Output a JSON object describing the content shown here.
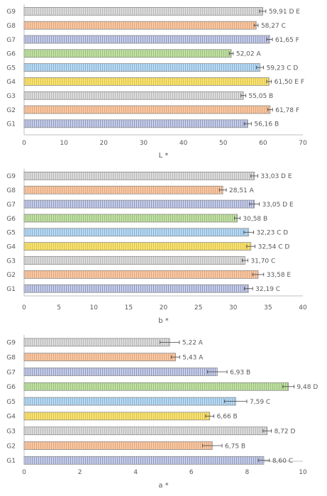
{
  "chart_data": [
    {
      "type": "bar",
      "orientation": "horizontal",
      "xlabel": "L *",
      "xlim": [
        0,
        70
      ],
      "xticks": [
        0,
        10,
        20,
        30,
        40,
        50,
        60,
        70
      ],
      "grid": false,
      "categories": [
        "G1",
        "G2",
        "G3",
        "G4",
        "G5",
        "G6",
        "G7",
        "G8",
        "G9"
      ],
      "values": [
        56.16,
        61.78,
        55.05,
        61.5,
        59.23,
        52.02,
        61.65,
        58.27,
        59.91
      ],
      "errors": [
        0.9,
        0.6,
        0.6,
        0.6,
        0.9,
        0.5,
        0.7,
        0.5,
        0.8
      ],
      "data_labels": [
        "56,16 B",
        "61,78 F",
        "55,05 B",
        "61,50 E F",
        "59,23 C D",
        "52,02 A",
        "61,65 F",
        "58,27 C",
        "59,91 D E"
      ]
    },
    {
      "type": "bar",
      "orientation": "horizontal",
      "xlabel": "b *",
      "xlim": [
        0,
        40
      ],
      "xticks": [
        0,
        5,
        10,
        15,
        20,
        25,
        30,
        35,
        40
      ],
      "grid": false,
      "categories": [
        "G1",
        "G2",
        "G3",
        "G4",
        "G5",
        "G6",
        "G7",
        "G8",
        "G9"
      ],
      "values": [
        32.19,
        33.58,
        31.7,
        32.54,
        32.23,
        30.58,
        33.05,
        28.51,
        33.03
      ],
      "errors": [
        0.6,
        0.8,
        0.4,
        0.6,
        0.7,
        0.4,
        0.7,
        0.5,
        0.5
      ],
      "data_labels": [
        "32,19 C",
        "33,58 E",
        "31,70 C",
        "32,54 C D",
        "32,23 C D",
        "30,58 B",
        "33,05 D E",
        "28,51 A",
        "33,03 D E"
      ]
    },
    {
      "type": "bar",
      "orientation": "horizontal",
      "xlabel": "a *",
      "xlim": [
        0,
        10
      ],
      "xticks": [
        0,
        2,
        4,
        6,
        8,
        10
      ],
      "grid": false,
      "categories": [
        "G1",
        "G2",
        "G3",
        "G4",
        "G5",
        "G6",
        "G7",
        "G8",
        "G9"
      ],
      "values": [
        8.6,
        6.75,
        8.72,
        6.66,
        7.59,
        9.48,
        6.93,
        5.43,
        5.22
      ],
      "errors": [
        0.2,
        0.35,
        0.15,
        0.15,
        0.4,
        0.2,
        0.35,
        0.15,
        0.35
      ],
      "data_labels": [
        "8,60 C",
        "6,75 B",
        "8,72 D",
        "6,66 B",
        "7,59 C",
        "9,48 D",
        "6,93 B",
        "5,43 A",
        "5,22 A"
      ]
    }
  ],
  "series_colors": {
    "G1": {
      "fill": "#c9cfe6",
      "stripe": "#5b6aa8"
    },
    "G2": {
      "fill": "#f6c9a8",
      "stripe": "#d4844c"
    },
    "G3": {
      "fill": "#dcdcdc",
      "stripe": "#9a9a9a"
    },
    "G4": {
      "fill": "#f7e27a",
      "stripe": "#c9a912"
    },
    "G5": {
      "fill": "#bcdaf0",
      "stripe": "#5893c4"
    },
    "G6": {
      "fill": "#c4e0a8",
      "stripe": "#6ea64a"
    },
    "G7": {
      "fill": "#c9cfe6",
      "stripe": "#5b6aa8"
    },
    "G8": {
      "fill": "#f6c9a8",
      "stripe": "#d4844c"
    },
    "G9": {
      "fill": "#dcdcdc",
      "stripe": "#9a9a9a"
    }
  },
  "axis_color": "#bfbfbf",
  "text_color": "#595959"
}
